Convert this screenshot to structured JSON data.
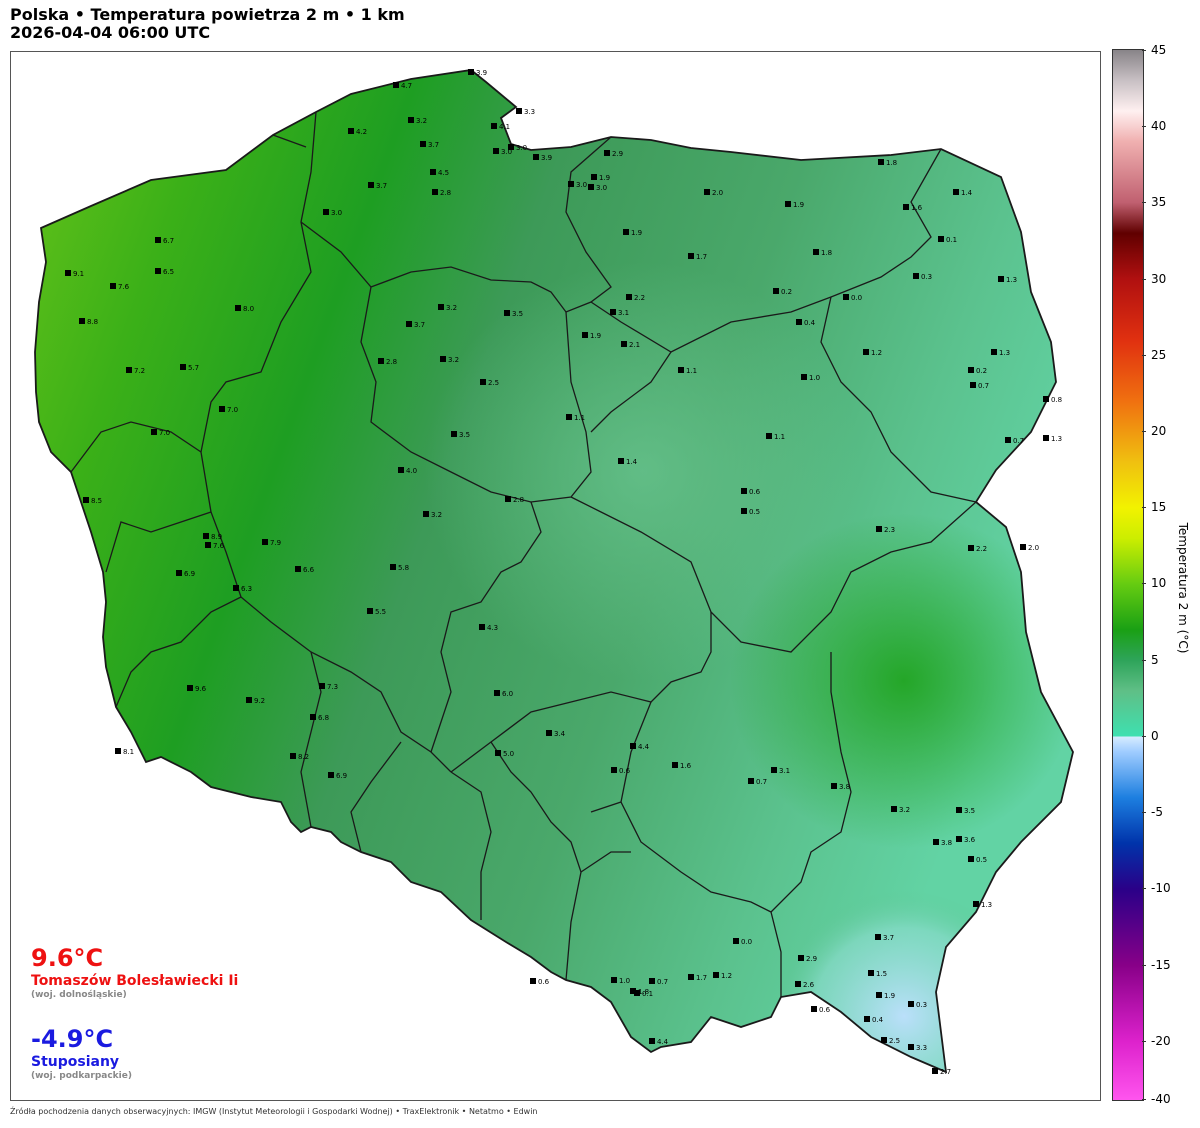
{
  "title": {
    "line1": "Polska • Temperatura powietrza 2 m • 1 km",
    "line2": "2026-04-04  06:00  UTC"
  },
  "colors": {
    "hot": "#ee1111",
    "cold": "#1a1ae0",
    "border": "#1a1a1a"
  },
  "extremes": {
    "max": {
      "value": "9.6°C",
      "station": "Tomaszów Bolesławiecki Ii",
      "region": "(woj. dolnośląskie)"
    },
    "min": {
      "value": "-4.9°C",
      "station": "Stuposiany",
      "region": "(woj. podkarpackie)"
    }
  },
  "colorbar": {
    "label": "Temperatura 2 m (°C)",
    "range": [
      -40,
      45
    ],
    "ticks": [
      "45",
      "40",
      "35",
      "30",
      "25",
      "20",
      "15",
      "10",
      "5",
      "0",
      "-5",
      "-10",
      "-15",
      "-20",
      "-40"
    ],
    "stops": [
      {
        "t": -40,
        "c": "#ff55ee"
      },
      {
        "t": -20,
        "c": "#dd22cc"
      },
      {
        "t": -15,
        "c": "#880088"
      },
      {
        "t": -10,
        "c": "#2a0088"
      },
      {
        "t": -7,
        "c": "#0033aa"
      },
      {
        "t": -4,
        "c": "#1d7fe0"
      },
      {
        "t": -1,
        "c": "#9fccff"
      },
      {
        "t": 0,
        "c": "#d8ecff"
      },
      {
        "t": 0.01,
        "c": "#3ee0b0"
      },
      {
        "t": 3,
        "c": "#5fbf86"
      },
      {
        "t": 5,
        "c": "#2ea45a"
      },
      {
        "t": 7,
        "c": "#1aa014"
      },
      {
        "t": 10,
        "c": "#66cc11"
      },
      {
        "t": 13,
        "c": "#ccee00"
      },
      {
        "t": 15,
        "c": "#f2f200"
      },
      {
        "t": 18,
        "c": "#f0c010"
      },
      {
        "t": 22,
        "c": "#f07010"
      },
      {
        "t": 26,
        "c": "#e03010"
      },
      {
        "t": 30,
        "c": "#b01010"
      },
      {
        "t": 33,
        "c": "#600000"
      },
      {
        "t": 35,
        "c": "#c06070"
      },
      {
        "t": 39,
        "c": "#f0b0b0"
      },
      {
        "t": 41,
        "c": "#fff0f0"
      },
      {
        "t": 43,
        "c": "#c8c0c4"
      },
      {
        "t": 45,
        "c": "#888488"
      }
    ]
  },
  "stations": [
    {
      "v": "3.9"
    },
    {
      "v": "3.3"
    },
    {
      "v": "4.7"
    },
    {
      "v": "4.1"
    },
    {
      "v": "3.0"
    },
    {
      "v": "3.9"
    },
    {
      "v": "4.2"
    },
    {
      "v": "3.2"
    },
    {
      "v": "3.7"
    },
    {
      "v": "3.0"
    },
    {
      "v": "2.9"
    },
    {
      "v": "3.0"
    },
    {
      "v": "4.5"
    },
    {
      "v": "2.8"
    },
    {
      "v": "3.7"
    },
    {
      "v": "3.0"
    },
    {
      "v": "1.9"
    },
    {
      "v": "3.0"
    },
    {
      "v": "2.0"
    },
    {
      "v": "1.8"
    },
    {
      "v": "1.4"
    },
    {
      "v": "1.9"
    },
    {
      "v": "1.6"
    },
    {
      "v": "0.1"
    },
    {
      "v": "1.9"
    },
    {
      "v": "1.7"
    },
    {
      "v": "1.8"
    },
    {
      "v": "0.3"
    },
    {
      "v": "1.3"
    },
    {
      "v": "0.2"
    },
    {
      "v": "0.0"
    },
    {
      "v": "0.4"
    },
    {
      "v": "2.2"
    },
    {
      "v": "3.1"
    },
    {
      "v": "3.5"
    },
    {
      "v": "3.2"
    },
    {
      "v": "3.7"
    },
    {
      "v": "2.1"
    },
    {
      "v": "1.9"
    },
    {
      "v": "2.8"
    },
    {
      "v": "3.2"
    },
    {
      "v": "2.5"
    },
    {
      "v": "1.1"
    },
    {
      "v": "1.2"
    },
    {
      "v": "1.0"
    },
    {
      "v": "1.3"
    },
    {
      "v": "0.2"
    },
    {
      "v": "0.7"
    },
    {
      "v": "0.8"
    },
    {
      "v": "0.7"
    },
    {
      "v": "1.3"
    },
    {
      "v": "1.1"
    },
    {
      "v": "1.1"
    },
    {
      "v": "1.4"
    },
    {
      "v": "3.5"
    },
    {
      "v": "4.0"
    },
    {
      "v": "3.2"
    },
    {
      "v": "2.8"
    },
    {
      "v": "0.6"
    },
    {
      "v": "0.5"
    },
    {
      "v": "2.3"
    },
    {
      "v": "2.2"
    },
    {
      "v": "2.0"
    },
    {
      "v": "9.1"
    },
    {
      "v": "7.6"
    },
    {
      "v": "8.8"
    },
    {
      "v": "7.2"
    },
    {
      "v": "6.7"
    },
    {
      "v": "6.5"
    },
    {
      "v": "5.7"
    },
    {
      "v": "8.0"
    },
    {
      "v": "7.0"
    },
    {
      "v": "7.0"
    },
    {
      "v": "8.5"
    },
    {
      "v": "6.9"
    },
    {
      "v": "7.6"
    },
    {
      "v": "6.3"
    },
    {
      "v": "8.9"
    },
    {
      "v": "7.9"
    },
    {
      "v": "6.6"
    },
    {
      "v": "5.8"
    },
    {
      "v": "5.5"
    },
    {
      "v": "4.3"
    },
    {
      "v": "6.0"
    },
    {
      "v": "9.6"
    },
    {
      "v": "9.2"
    },
    {
      "v": "7.3"
    },
    {
      "v": "8.1"
    },
    {
      "v": "6.9"
    },
    {
      "v": "8.2"
    },
    {
      "v": "6.8"
    },
    {
      "v": "5.0"
    },
    {
      "v": "4.4"
    },
    {
      "v": "3.4"
    },
    {
      "v": "1.6"
    },
    {
      "v": "0.6"
    },
    {
      "v": "3.1"
    },
    {
      "v": "0.7"
    },
    {
      "v": "3.8"
    },
    {
      "v": "3.2"
    },
    {
      "v": "3.5"
    },
    {
      "v": "3.6"
    },
    {
      "v": "3.8"
    },
    {
      "v": "0.5"
    },
    {
      "v": "1.3"
    },
    {
      "v": "3.7"
    },
    {
      "v": "2.9"
    },
    {
      "v": "1.5"
    },
    {
      "v": "1.9"
    },
    {
      "v": "0.3"
    },
    {
      "v": "0.4"
    },
    {
      "v": "2.5"
    },
    {
      "v": "3.3"
    },
    {
      "v": "2.7"
    },
    {
      "v": "0.6"
    },
    {
      "v": "0.0"
    },
    {
      "v": "1.2"
    },
    {
      "v": "1.7"
    },
    {
      "v": "2.6"
    },
    {
      "v": "0.7"
    },
    {
      "v": "1.0"
    },
    {
      "v": "0.1"
    },
    {
      "v": "0.6"
    },
    {
      "v": "1.8"
    },
    {
      "v": "4.4"
    },
    {
      "v": "3.4"
    }
  ],
  "source_text": "Źródła pochodzenia danych obserwacyjnych: IMGW (Instytut Meteorologii i Gospodarki Wodnej)  •  TraxElektronik  •  Netatmo  •  Edwin"
}
